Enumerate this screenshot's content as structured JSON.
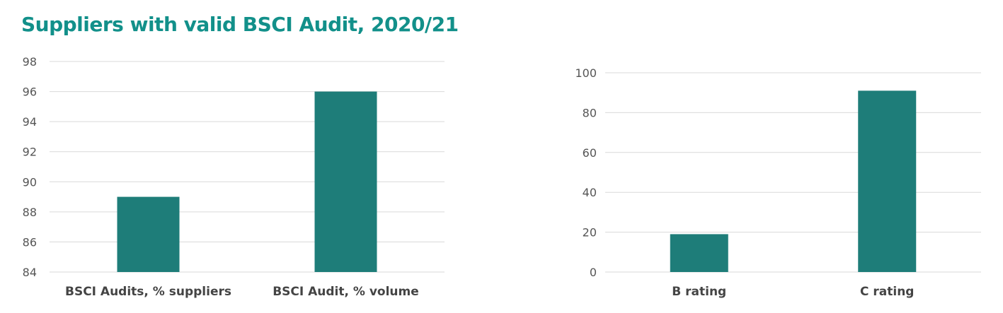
{
  "title": "Suppliers with valid BSCI Audit, 2020/21",
  "colors": {
    "title": "#12908a",
    "bar": "#1e7d79",
    "grid": "#d9d9d9"
  },
  "chart_data": [
    {
      "type": "bar",
      "categories": [
        "BSCI Audits, % suppliers",
        "BSCI Audit, % volume"
      ],
      "values": [
        89,
        96
      ],
      "ylim": [
        84,
        98
      ],
      "yticks": [
        84,
        86,
        88,
        90,
        92,
        94,
        96,
        98
      ],
      "grid": true,
      "xlabel": "",
      "ylabel": ""
    },
    {
      "type": "bar",
      "categories": [
        "B rating",
        "C rating"
      ],
      "values": [
        19,
        91
      ],
      "ylim": [
        0,
        100
      ],
      "yticks": [
        0,
        20,
        40,
        60,
        80,
        100
      ],
      "grid": true,
      "xlabel": "",
      "ylabel": ""
    }
  ]
}
